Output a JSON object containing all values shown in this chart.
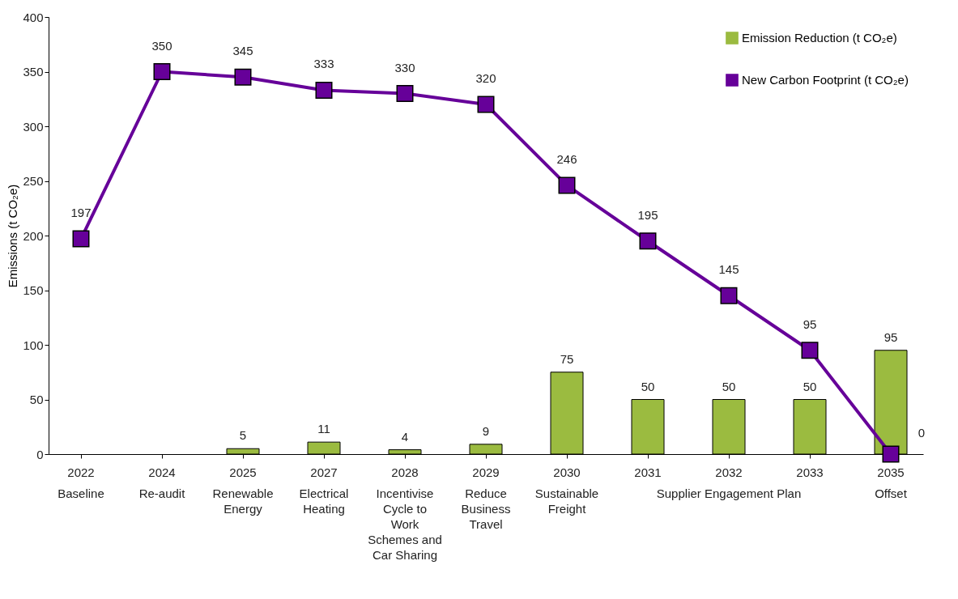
{
  "chart_data": {
    "type": "bar",
    "categories": [
      "2022",
      "2024",
      "2025",
      "2027",
      "2028",
      "2029",
      "2030",
      "2031",
      "2032",
      "2033",
      "2035"
    ],
    "series": [
      {
        "name": "Emission Reduction (t CO₂e)",
        "type": "bar",
        "color": "#9bbb40",
        "values": [
          null,
          null,
          5,
          11,
          4,
          9,
          75,
          50,
          50,
          50,
          95
        ]
      },
      {
        "name": "New Carbon Footprint (t CO₂e)",
        "type": "line",
        "color": "#660099",
        "values": [
          197,
          350,
          345,
          333,
          330,
          320,
          246,
          195,
          145,
          95,
          0
        ]
      }
    ],
    "ylabel": "Emissions (t CO₂e)",
    "ylim": [
      0,
      400
    ],
    "yticks": [
      0,
      50,
      100,
      150,
      200,
      250,
      300,
      350,
      400
    ],
    "data_labels": true,
    "marker": "square",
    "line_style": "solid",
    "grid": false,
    "legend": "top right",
    "annotations": [
      "Baseline",
      "Re-audit",
      "Renewable Energy",
      "Electrical Heating",
      "Incentivise Cycle to Work Schemes and Car Sharing",
      "Reduce Business Travel",
      "Sustainable Freight",
      "Supplier Engagement Plan",
      "Offset"
    ]
  }
}
